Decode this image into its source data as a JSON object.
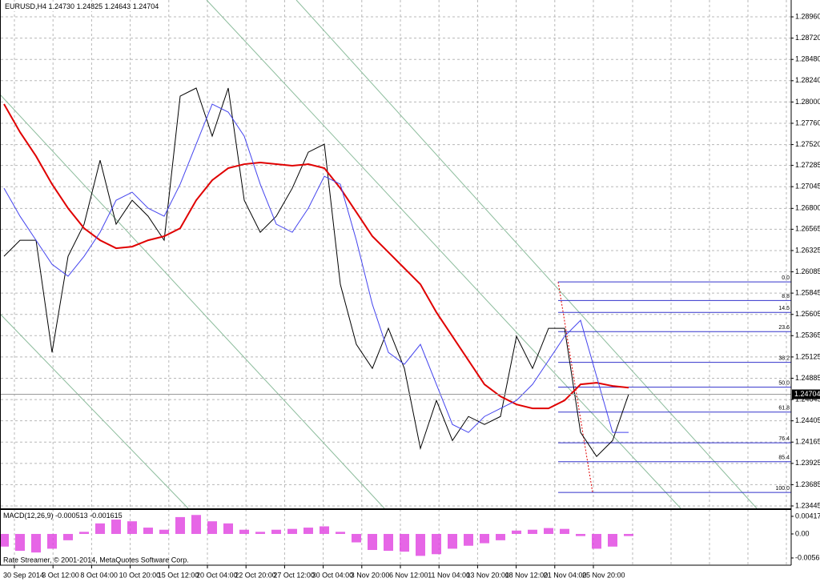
{
  "chart_data": {
    "type": "line",
    "header": {
      "symbol": "EURUSD,H4",
      "ohlc": [
        "1.24730",
        "1.24825",
        "1.24643",
        "1.24704"
      ]
    },
    "x_labels": [
      "30 Sep 2014",
      "3 Oct 12:00",
      "8 Oct 04:00",
      "10 Oct 20:00",
      "15 Oct 12:00",
      "20 Oct 04:00",
      "22 Oct 20:00",
      "27 Oct 12:00",
      "30 Oct 04:00",
      "3 Nov 20:00",
      "6 Nov 12:00",
      "11 Nov 04:00",
      "13 Nov 20:00",
      "18 Nov 12:00",
      "21 Nov 04:00",
      "25 Nov 20:00"
    ],
    "ylim": [
      1.23418,
      1.2915
    ],
    "yticks": [
      {
        "value": 1.2896,
        "label": "1.28960"
      },
      {
        "value": 1.2872,
        "label": "1.28720"
      },
      {
        "value": 1.2848,
        "label": "1.28480"
      },
      {
        "value": 1.2824,
        "label": "1.28240"
      },
      {
        "value": 1.28,
        "label": "1.28000"
      },
      {
        "value": 1.2776,
        "label": "1.27760"
      },
      {
        "value": 1.2752,
        "label": "1.27520"
      },
      {
        "value": 1.27285,
        "label": "1.27285"
      },
      {
        "value": 1.27045,
        "label": "1.27045"
      },
      {
        "value": 1.268,
        "label": "1.26800"
      },
      {
        "value": 1.26565,
        "label": "1.26565"
      },
      {
        "value": 1.26325,
        "label": "1.26325"
      },
      {
        "value": 1.26085,
        "label": "1.26085"
      },
      {
        "value": 1.25845,
        "label": "1.25845"
      },
      {
        "value": 1.25605,
        "label": "1.25605"
      },
      {
        "value": 1.25365,
        "label": "1.25365"
      },
      {
        "value": 1.25125,
        "label": "1.25125"
      },
      {
        "value": 1.24885,
        "label": "1.24885"
      },
      {
        "value": 1.24645,
        "label": "1.24645"
      },
      {
        "value": 1.24405,
        "label": "1.24405"
      },
      {
        "value": 1.24165,
        "label": "1.24165"
      },
      {
        "value": 1.23925,
        "label": "1.23925"
      },
      {
        "value": 1.23685,
        "label": "1.23685"
      },
      {
        "value": 1.23445,
        "label": "1.23445"
      }
    ],
    "current_price": {
      "value": 1.24704,
      "label": "1.24704"
    },
    "grid": true,
    "series": [
      {
        "color": "#000000",
        "values": [
          1.2626,
          1.26441,
          1.26441,
          1.25177,
          1.2626,
          1.26622,
          1.27344,
          1.26622,
          1.26892,
          1.26712,
          1.26441,
          1.28066,
          1.28157,
          1.27615,
          1.28157,
          1.26892,
          1.26531,
          1.26712,
          1.27028,
          1.27434,
          1.27525,
          1.25944,
          1.25267,
          1.24996,
          1.25448,
          1.24996,
          1.24093,
          1.24635,
          1.24183,
          1.24454,
          1.24364,
          1.24454,
          1.25357,
          1.24996,
          1.25448,
          1.25448,
          1.24274,
          1.24003,
          1.24183,
          1.24704
        ]
      },
      {
        "color": "#e00000",
        "values": [
          1.27976,
          1.2766,
          1.27389,
          1.27073,
          1.26802,
          1.26576,
          1.26441,
          1.26351,
          1.26369,
          1.26441,
          1.26486,
          1.26576,
          1.26892,
          1.27118,
          1.27254,
          1.27299,
          1.27317,
          1.27299,
          1.27281,
          1.27299,
          1.27254,
          1.27028,
          1.26757,
          1.26486,
          1.26306,
          1.26125,
          1.25944,
          1.25628,
          1.25357,
          1.25086,
          1.24816,
          1.2468,
          1.2459,
          1.24545,
          1.24545,
          1.24635,
          1.24816,
          1.24834,
          1.24798,
          1.24779
        ]
      },
      {
        "color": "#4444ee",
        "values": [
          1.27028,
          1.26712,
          1.26441,
          1.2617,
          1.26035,
          1.2626,
          1.26531,
          1.26892,
          1.26983,
          1.26802,
          1.26712,
          1.27073,
          1.27525,
          1.27976,
          1.27886,
          1.27615,
          1.27073,
          1.26622,
          1.26531,
          1.26802,
          1.27163,
          1.27073,
          1.26441,
          1.25719,
          1.25177,
          1.25042,
          1.25267,
          1.24816,
          1.24364,
          1.24274,
          1.24454,
          1.24545,
          1.24635,
          1.24816,
          1.25086,
          1.25357,
          1.25538,
          1.24906,
          1.24274,
          1.24274
        ]
      }
    ],
    "fib": {
      "high": 1.25971,
      "low": 1.23597,
      "color": "#3333cc",
      "levels": [
        {
          "value": 0,
          "label": "0.0"
        },
        {
          "value": 8.8,
          "label": "8.8"
        },
        {
          "value": 14.5,
          "label": "14.5"
        },
        {
          "value": 23.6,
          "label": "23.6"
        },
        {
          "value": 38.2,
          "label": "38.2"
        },
        {
          "value": 50,
          "label": "50.0"
        },
        {
          "value": 61.8,
          "label": "61.8"
        },
        {
          "value": 76.4,
          "label": "76.4"
        },
        {
          "value": 85.4,
          "label": "85.4"
        },
        {
          "value": 100,
          "label": "100.0"
        }
      ]
    },
    "macd": {
      "label": "MACD(12,26,9)",
      "main": -0.000513,
      "signal": -0.001615,
      "color": "#e040e0",
      "ylim": [
        -0.00722,
        0.0055
      ],
      "yticks": [
        0.004175,
        {
          "value": 0,
          "label": "0.00"
        },
        -0.005697
      ],
      "histogram": [
        -0.003,
        -0.004,
        -0.0044,
        -0.0035,
        -0.0015,
        0.0005,
        0.0025,
        0.0034,
        0.003,
        0.0015,
        0.001,
        0.004,
        0.0045,
        0.003,
        0.0025,
        0.001,
        0.0005,
        0.001,
        0.0012,
        0.0015,
        0.0018,
        0.0005,
        -0.002,
        -0.0038,
        -0.004,
        -0.0042,
        -0.0052,
        -0.0048,
        -0.0035,
        -0.0028,
        -0.0022,
        -0.0015,
        0.0008,
        0.001,
        0.0014,
        0.0012,
        -0.0005,
        -0.0035,
        -0.003,
        -0.0005
      ]
    },
    "footer": "Rate Streamer, © 2001-2014, MetaQuotes Software Corp."
  }
}
